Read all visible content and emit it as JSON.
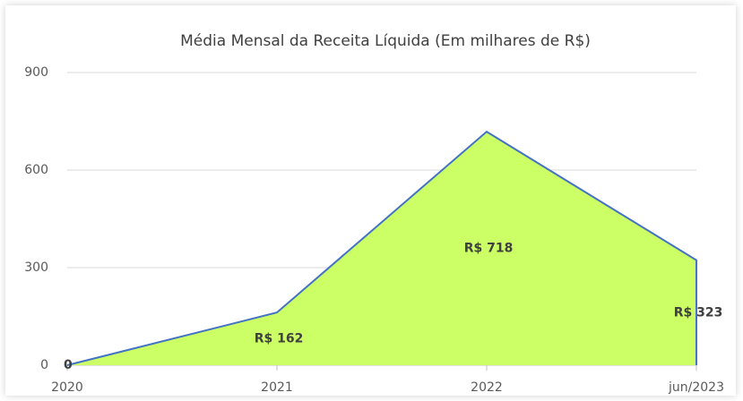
{
  "chart_data": {
    "type": "area",
    "title": "Média Mensal da Receita Líquida (Em milhares de R$)",
    "categories": [
      "2020",
      "2021",
      "2022",
      "jun/2023"
    ],
    "values": [
      0,
      162,
      718,
      323
    ],
    "value_labels": [
      "0",
      "R$ 162",
      "R$ 718",
      "R$ 323"
    ],
    "color": "#ccff66",
    "line_color": "#4472c4",
    "ylim": [
      0,
      900
    ],
    "yticks": [
      0,
      300,
      600,
      900
    ],
    "grid": true
  }
}
